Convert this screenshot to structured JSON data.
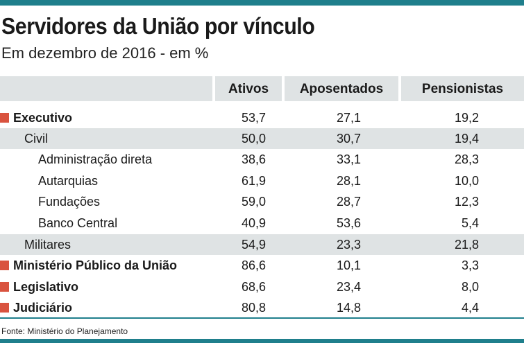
{
  "title": "Servidores da União por vínculo",
  "subtitle": "Em dezembro de 2016 - em %",
  "columns": [
    "Ativos",
    "Aposentados",
    "Pensionistas"
  ],
  "colors": {
    "accent": "#1f7f8c",
    "marker": "#d9533f",
    "band": "#dfe3e4"
  },
  "rows": [
    {
      "label": "Executivo",
      "values": [
        "53,7",
        "27,1",
        "19,2"
      ]
    },
    {
      "label": "Civil",
      "values": [
        "50,0",
        "30,7",
        "19,4"
      ]
    },
    {
      "label": "Administração direta",
      "values": [
        "38,6",
        "33,1",
        "28,3"
      ]
    },
    {
      "label": "Autarquias",
      "values": [
        "61,9",
        "28,1",
        "10,0"
      ]
    },
    {
      "label": "Fundações",
      "values": [
        "59,0",
        "28,7",
        "12,3"
      ]
    },
    {
      "label": "Banco Central",
      "values": [
        "40,9",
        "53,6",
        "5,4"
      ]
    },
    {
      "label": "Militares",
      "values": [
        "54,9",
        "23,3",
        "21,8"
      ]
    },
    {
      "label": "Ministério Público da União",
      "values": [
        "86,6",
        "10,1",
        "3,3"
      ]
    },
    {
      "label": "Legislativo",
      "values": [
        "68,6",
        "23,4",
        "8,0"
      ]
    },
    {
      "label": "Judiciário",
      "values": [
        "80,8",
        "14,8",
        "4,4"
      ]
    }
  ],
  "source": "Fonte: Ministério do Planejamento"
}
